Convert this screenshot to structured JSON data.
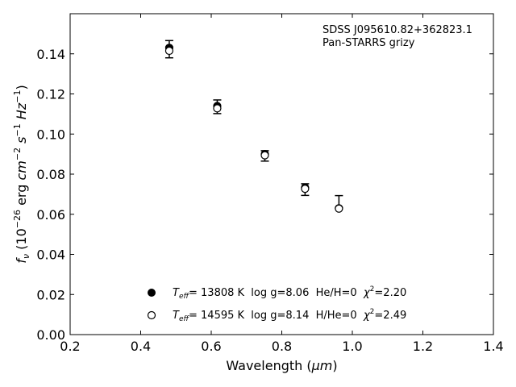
{
  "chart_data": {
    "type": "scatter",
    "xlabel": "Wavelength (",
    "xlabel_unit": "μm",
    "xlabel_end": ")",
    "ylabel": {
      "f": "f",
      "nu": "ν",
      "open": " (10",
      "exp1": "−26",
      "erg": " erg ",
      "cm": "cm",
      "exp2": "−2",
      "s": " s",
      "exp3": "−1",
      "hz": " Hz",
      "exp4": "−1",
      "close": ")"
    },
    "xlim": [
      0.2,
      1.4
    ],
    "ylim": [
      0.0,
      0.16
    ],
    "x_ticks": [
      0.2,
      0.4,
      0.6,
      0.8,
      1.0,
      1.2,
      1.4
    ],
    "x_tick_labels": [
      "0.2",
      "0.4",
      "0.6",
      "0.8",
      "1.0",
      "1.2",
      "1.4"
    ],
    "y_ticks": [
      0.0,
      0.02,
      0.04,
      0.06,
      0.08,
      0.1,
      0.12,
      0.14
    ],
    "y_tick_labels": [
      "0.00",
      "0.02",
      "0.04",
      "0.06",
      "0.08",
      "0.10",
      "0.12",
      "0.14"
    ],
    "grid": false,
    "annotation": {
      "line1": "SDSS J095610.82+362823.1",
      "line2": "Pan-STARRS grizy"
    },
    "observed": {
      "x": [
        0.481,
        0.617,
        0.752,
        0.866,
        0.962
      ],
      "y": [
        0.1423,
        0.1136,
        0.0891,
        0.0723,
        0.0662
      ],
      "err": [
        0.0043,
        0.0034,
        0.0026,
        0.0029,
        0.0031
      ]
    },
    "series": [
      {
        "name": "filled",
        "marker": "filled-circle",
        "x": [
          0.481,
          0.617,
          0.752,
          0.866,
          0.962
        ],
        "y": [
          0.143,
          0.114,
          0.09,
          0.0733,
          0.063
        ]
      },
      {
        "name": "open",
        "marker": "open-circle",
        "x": [
          0.481,
          0.617,
          0.752,
          0.866,
          0.962
        ],
        "y": [
          0.1415,
          0.1128,
          0.0894,
          0.0727,
          0.0628
        ]
      }
    ],
    "legend": {
      "position": "bottom-center",
      "entries": [
        {
          "marker": "filled-circle",
          "t": "T",
          "eff": "eff",
          "text": "= 13808 K  log g=8.06  He/H=0  ",
          "chi": "χ",
          "sq": "2",
          "chival": "=2.20"
        },
        {
          "marker": "open-circle",
          "t": "T",
          "eff": "eff",
          "text": "= 14595 K  log g=8.14  H/He=0  ",
          "chi": "χ",
          "sq": "2",
          "chival": "=2.49"
        }
      ]
    }
  }
}
